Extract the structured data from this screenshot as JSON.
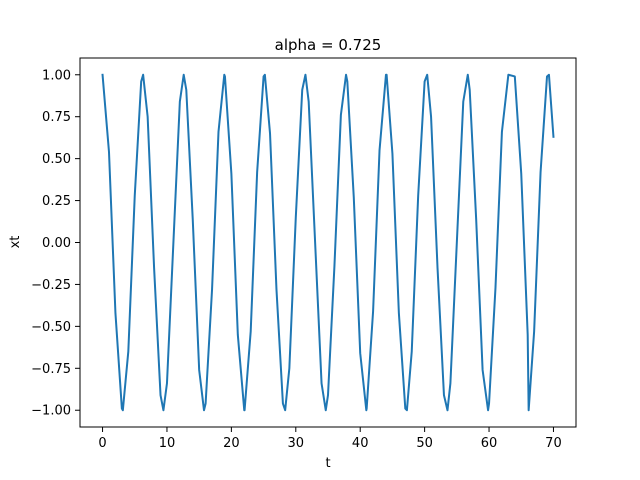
{
  "chart_data": {
    "type": "line",
    "title": "alpha = 0.725",
    "xlabel": "t",
    "ylabel": "xt",
    "xlim": [
      -3.5,
      73.5
    ],
    "ylim": [
      -1.1,
      1.1
    ],
    "xticks": [
      0,
      10,
      20,
      30,
      40,
      50,
      60,
      70
    ],
    "xtick_labels": [
      "0",
      "10",
      "20",
      "30",
      "40",
      "50",
      "60",
      "70"
    ],
    "yticks": [
      -1.0,
      -0.75,
      -0.5,
      -0.25,
      0.0,
      0.25,
      0.5,
      0.75,
      1.0
    ],
    "ytick_labels": [
      "−1.00",
      "−0.75",
      "−0.50",
      "−0.25",
      "0.00",
      "0.25",
      "0.50",
      "0.75",
      "1.00"
    ],
    "grid": false,
    "series": [
      {
        "color": "#1f77b4",
        "x": [
          0,
          1,
          2,
          3,
          3.15,
          4,
          5,
          6,
          6.3,
          7,
          8,
          9,
          9.45,
          10,
          11,
          12,
          12.6,
          13,
          14,
          15,
          15.75,
          16,
          17,
          18,
          18.9,
          19,
          20,
          21,
          22,
          22.05,
          23,
          24,
          25,
          25.2,
          26,
          27,
          28,
          28.35,
          29,
          30,
          31,
          31.5,
          32,
          33,
          34,
          34.65,
          35,
          36,
          37,
          37.8,
          38,
          39,
          40,
          40.95,
          41,
          42,
          43,
          44,
          44.1,
          45,
          46,
          47,
          47.25,
          48,
          49,
          50,
          50.4,
          51,
          52,
          53,
          53.55,
          54,
          55,
          56,
          56.7,
          57,
          58,
          59,
          59.85,
          60,
          61,
          62,
          63,
          63.0,
          64,
          65,
          66,
          66.15,
          67,
          68,
          69,
          69.3,
          70
        ],
        "y": [
          1.0,
          0.54,
          -0.42,
          -0.99,
          -1.0,
          -0.65,
          0.28,
          0.96,
          1.0,
          0.75,
          -0.15,
          -0.91,
          -1.0,
          -0.84,
          0.0,
          0.84,
          1.0,
          0.91,
          0.14,
          -0.76,
          -1.0,
          -0.96,
          -0.28,
          0.66,
          1.0,
          0.99,
          0.41,
          -0.55,
          -1.0,
          -1.0,
          -0.53,
          0.42,
          0.99,
          1.0,
          0.65,
          -0.28,
          -0.96,
          -1.0,
          -0.75,
          0.15,
          0.91,
          1.0,
          0.84,
          0.0,
          -0.84,
          -1.0,
          -0.91,
          -0.14,
          0.76,
          1.0,
          0.96,
          0.27,
          -0.66,
          -1.0,
          -0.99,
          -0.41,
          0.55,
          1.0,
          1.0,
          0.53,
          -0.42,
          -0.99,
          -1.0,
          -0.65,
          0.28,
          0.96,
          1.0,
          0.75,
          -0.15,
          -0.91,
          -1.0,
          -0.84,
          0.0,
          0.84,
          1.0,
          0.91,
          0.14,
          -0.76,
          -1.0,
          -0.96,
          -0.27,
          0.66,
          1.0,
          1.0,
          0.99,
          0.41,
          -0.55,
          -1.0,
          -0.53,
          0.42,
          0.99,
          1.0,
          0.63
        ]
      }
    ]
  }
}
